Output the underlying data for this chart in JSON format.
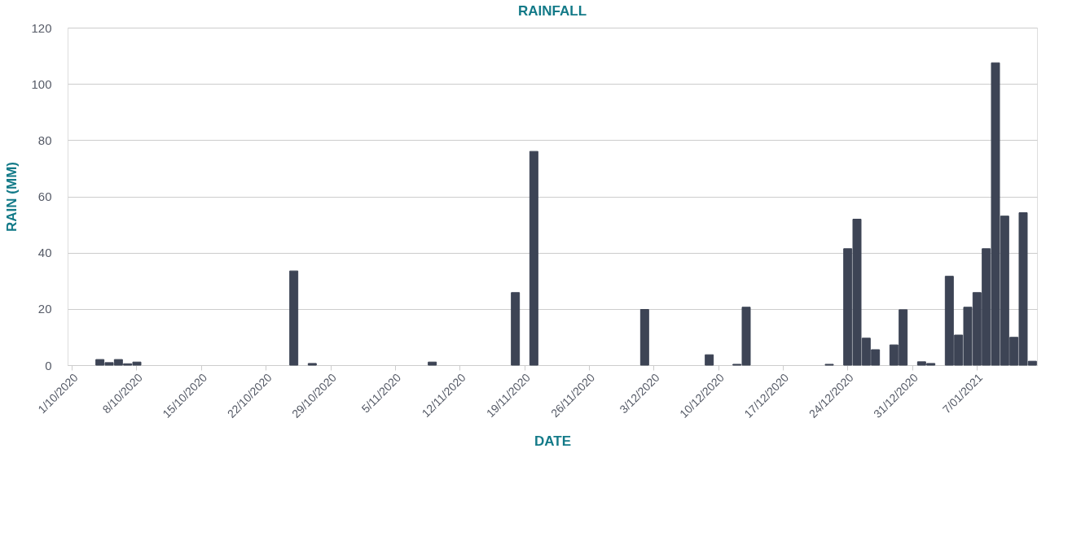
{
  "chart_data": {
    "type": "bar",
    "title": "RAINFALL",
    "xlabel": "DATE",
    "ylabel": "RAIN (MM)",
    "categories": [
      "1/10/2020",
      null,
      null,
      null,
      null,
      null,
      null,
      "8/10/2020",
      null,
      null,
      null,
      null,
      null,
      null,
      "15/10/2020",
      null,
      null,
      null,
      null,
      null,
      null,
      "22/10/2020",
      null,
      null,
      null,
      null,
      null,
      null,
      "29/10/2020",
      null,
      null,
      null,
      null,
      null,
      null,
      "5/11/2020",
      null,
      null,
      null,
      null,
      null,
      null,
      "12/11/2020",
      null,
      null,
      null,
      null,
      null,
      null,
      "19/11/2020",
      null,
      null,
      null,
      null,
      null,
      null,
      "26/11/2020",
      null,
      null,
      null,
      null,
      null,
      null,
      "3/12/2020",
      null,
      null,
      null,
      null,
      null,
      null,
      "10/12/2020",
      null,
      null,
      null,
      null,
      null,
      null,
      "17/12/2020",
      null,
      null,
      null,
      null,
      null,
      null,
      "24/12/2020",
      null,
      null,
      null,
      null,
      null,
      null,
      "31/12/2020",
      null,
      null,
      null,
      null,
      null,
      null,
      "7/01/2021",
      null,
      null,
      null,
      null,
      null,
      null
    ],
    "series": [
      {
        "color": "#3d4455",
        "values": [
          null,
          null,
          null,
          2.0,
          0.9,
          2.0,
          0.5,
          1.1,
          null,
          null,
          null,
          null,
          null,
          null,
          null,
          null,
          null,
          null,
          null,
          null,
          null,
          null,
          null,
          null,
          33.5,
          null,
          0.6,
          null,
          null,
          null,
          null,
          null,
          null,
          null,
          null,
          null,
          null,
          null,
          null,
          1.1,
          null,
          null,
          null,
          null,
          null,
          null,
          null,
          null,
          25.8,
          null,
          76,
          null,
          null,
          null,
          null,
          null,
          null,
          null,
          null,
          null,
          null,
          null,
          19.8,
          null,
          null,
          null,
          null,
          null,
          null,
          3.7,
          null,
          null,
          0.3,
          20.6,
          null,
          null,
          null,
          null,
          null,
          null,
          null,
          null,
          0.3,
          null,
          41.4,
          51.9,
          9.6,
          5.5,
          null,
          7.2,
          19.7,
          null,
          1.2,
          0.6,
          null,
          31.6,
          10.7,
          20.6,
          25.8,
          41.4,
          107.5,
          53.0,
          9.9,
          54.2,
          1.4
        ]
      }
    ],
    "ylim": [
      0,
      120
    ],
    "yticks": [
      0,
      20,
      40,
      60,
      80,
      100,
      120
    ],
    "grid": "y",
    "legend": false
  }
}
